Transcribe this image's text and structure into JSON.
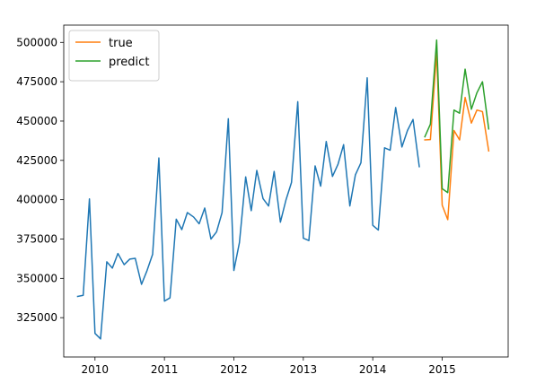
{
  "chart_data": {
    "type": "line",
    "title": "",
    "xlabel": "",
    "ylabel": "",
    "xlim": [
      2009.55,
      2015.95
    ],
    "ylim": [
      300000,
      511000
    ],
    "xticks": [
      2010,
      2011,
      2012,
      2013,
      2014,
      2015
    ],
    "yticks": [
      325000,
      350000,
      375000,
      400000,
      425000,
      450000,
      475000,
      500000
    ],
    "grid": false,
    "legend": {
      "position": "top-left",
      "entries": [
        "true",
        "predict"
      ]
    },
    "series": [
      {
        "name": "",
        "color": "#1f77b4",
        "legend": false,
        "points": [
          [
            2009.75,
            338500
          ],
          [
            2009.83,
            339200
          ],
          [
            2009.92,
            400500
          ],
          [
            2010.0,
            315000
          ],
          [
            2010.08,
            311500
          ],
          [
            2010.17,
            360500
          ],
          [
            2010.25,
            356500
          ],
          [
            2010.33,
            365800
          ],
          [
            2010.42,
            358700
          ],
          [
            2010.5,
            362200
          ],
          [
            2010.58,
            362700
          ],
          [
            2010.67,
            346200
          ],
          [
            2010.75,
            355000
          ],
          [
            2010.83,
            365300
          ],
          [
            2010.92,
            426500
          ],
          [
            2011.0,
            335500
          ],
          [
            2011.08,
            337600
          ],
          [
            2011.17,
            387600
          ],
          [
            2011.25,
            381000
          ],
          [
            2011.33,
            391800
          ],
          [
            2011.42,
            389000
          ],
          [
            2011.5,
            384700
          ],
          [
            2011.58,
            394700
          ],
          [
            2011.67,
            375000
          ],
          [
            2011.75,
            379500
          ],
          [
            2011.83,
            391800
          ],
          [
            2011.92,
            451500
          ],
          [
            2012.0,
            355000
          ],
          [
            2012.08,
            372700
          ],
          [
            2012.17,
            414500
          ],
          [
            2012.25,
            393000
          ],
          [
            2012.33,
            418600
          ],
          [
            2012.42,
            400700
          ],
          [
            2012.5,
            396000
          ],
          [
            2012.58,
            418000
          ],
          [
            2012.67,
            385700
          ],
          [
            2012.75,
            399800
          ],
          [
            2012.83,
            411000
          ],
          [
            2012.92,
            462300
          ],
          [
            2013.0,
            375500
          ],
          [
            2013.08,
            374000
          ],
          [
            2013.17,
            421500
          ],
          [
            2013.25,
            408600
          ],
          [
            2013.33,
            437000
          ],
          [
            2013.42,
            414800
          ],
          [
            2013.5,
            422600
          ],
          [
            2013.58,
            435000
          ],
          [
            2013.67,
            396000
          ],
          [
            2013.75,
            415800
          ],
          [
            2013.83,
            423500
          ],
          [
            2013.92,
            477500
          ],
          [
            2014.0,
            383700
          ],
          [
            2014.08,
            380700
          ],
          [
            2014.17,
            433000
          ],
          [
            2014.25,
            431500
          ],
          [
            2014.33,
            458600
          ],
          [
            2014.42,
            433500
          ],
          [
            2014.5,
            444000
          ],
          [
            2014.58,
            451000
          ],
          [
            2014.67,
            421000
          ]
        ]
      },
      {
        "name": "true",
        "color": "#ff7f0e",
        "legend": true,
        "points": [
          [
            2014.75,
            438000
          ],
          [
            2014.83,
            438200
          ],
          [
            2014.92,
            493500
          ],
          [
            2015.0,
            396500
          ],
          [
            2015.08,
            387300
          ],
          [
            2015.17,
            444000
          ],
          [
            2015.25,
            438000
          ],
          [
            2015.33,
            465000
          ],
          [
            2015.42,
            448700
          ],
          [
            2015.5,
            457000
          ],
          [
            2015.58,
            456000
          ],
          [
            2015.67,
            431000
          ]
        ]
      },
      {
        "name": "predict",
        "color": "#2ca02c",
        "legend": true,
        "points": [
          [
            2014.75,
            440000
          ],
          [
            2014.83,
            448000
          ],
          [
            2014.92,
            501500
          ],
          [
            2015.0,
            407000
          ],
          [
            2015.08,
            404500
          ],
          [
            2015.17,
            457000
          ],
          [
            2015.25,
            455000
          ],
          [
            2015.33,
            483000
          ],
          [
            2015.42,
            457500
          ],
          [
            2015.5,
            468000
          ],
          [
            2015.58,
            475000
          ],
          [
            2015.67,
            445000
          ]
        ]
      }
    ]
  }
}
